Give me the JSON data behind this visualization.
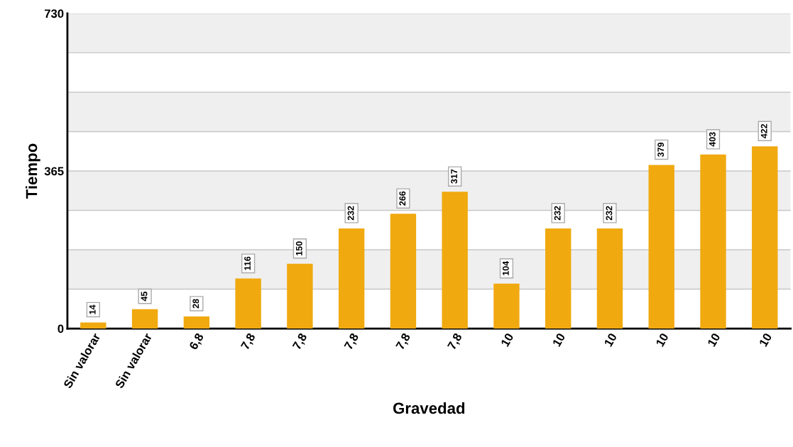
{
  "chart_data": {
    "type": "bar",
    "xlabel": "Gravedad",
    "ylabel": "Tiempo",
    "categories": [
      "Sin valorar",
      "Sin valorar",
      "6,8",
      "7,8",
      "7,8",
      "7,8",
      "7,8",
      "7,8",
      "10",
      "10",
      "10",
      "10",
      "10",
      "10"
    ],
    "values": [
      14,
      45,
      28,
      116,
      150,
      232,
      266,
      317,
      104,
      232,
      232,
      379,
      403,
      422
    ],
    "color": "#f0a90f",
    "ylim": [
      0,
      730
    ],
    "yticks": [
      0,
      {
        "value": 91.25,
        "label": null
      },
      {
        "value": 182.5,
        "label": null
      },
      {
        "value": 273.75,
        "label": null
      },
      365,
      {
        "value": 456.25,
        "label": null
      },
      {
        "value": 547.5,
        "label": null
      },
      {
        "value": 638.75,
        "label": null
      },
      730
    ],
    "grid": "y",
    "data_labels": true
  }
}
